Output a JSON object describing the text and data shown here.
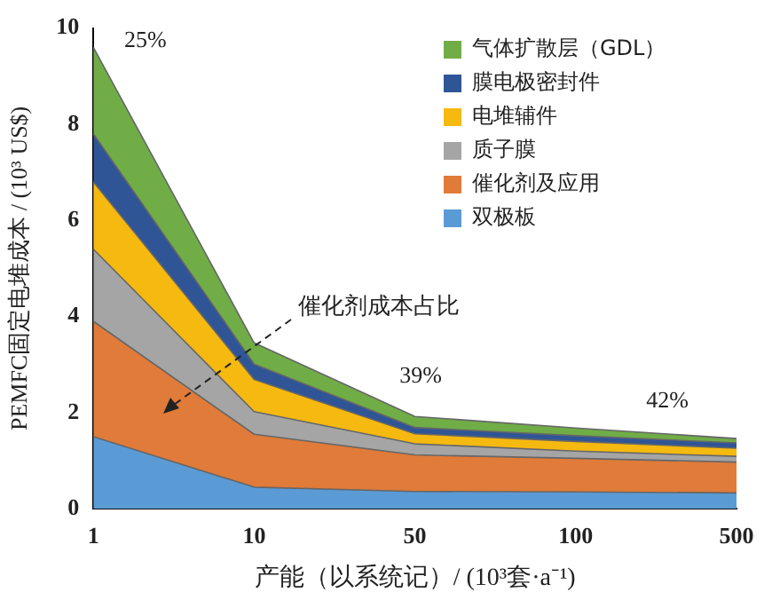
{
  "chart_data": {
    "type": "area",
    "stacked": true,
    "xlabel": "产能（以系统记）/ (10³套·a⁻¹)",
    "ylabel": "PEMFC固定电堆成本 / (10³ US$)",
    "categories": [
      "1",
      "10",
      "50",
      "100",
      "500"
    ],
    "ylim": [
      0,
      10
    ],
    "yticks": [
      0,
      2,
      4,
      6,
      8,
      10
    ],
    "grid": false,
    "legend": "top right",
    "series": [
      {
        "name": "双极板",
        "color": "#5b9bd5",
        "values": [
          1.5,
          0.45,
          0.36,
          0.35,
          0.33
        ]
      },
      {
        "name": "催化剂及应用",
        "color": "#e07b39",
        "values": [
          2.4,
          1.1,
          0.76,
          0.7,
          0.64
        ]
      },
      {
        "name": "质子膜",
        "color": "#a5a5a5",
        "values": [
          1.5,
          0.47,
          0.23,
          0.15,
          0.12
        ]
      },
      {
        "name": "电堆辅件",
        "color": "#f5b90f",
        "values": [
          1.4,
          0.67,
          0.21,
          0.2,
          0.17
        ]
      },
      {
        "name": "膜电极密封件",
        "color": "#2f5597",
        "values": [
          1.0,
          0.32,
          0.13,
          0.12,
          0.11
        ]
      },
      {
        "name": "气体扩散层（GDL）",
        "color": "#70ad47",
        "values": [
          1.8,
          0.44,
          0.23,
          0.16,
          0.09
        ]
      }
    ],
    "annotations": [
      "25%",
      "39%",
      "42%",
      "催化剂成本占比"
    ]
  }
}
